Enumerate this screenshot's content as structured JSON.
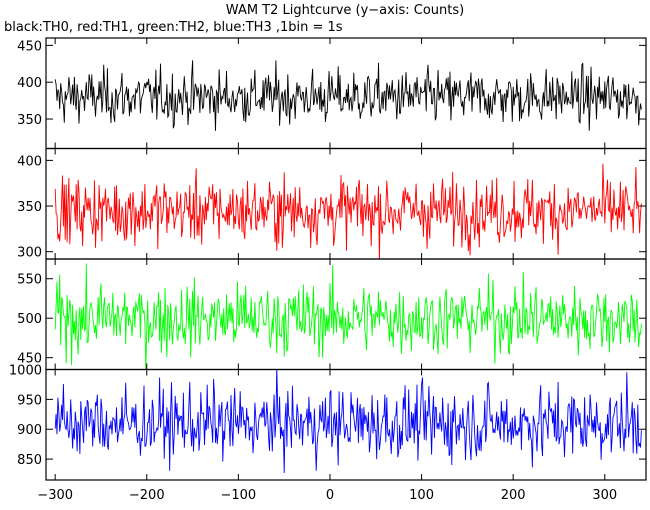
{
  "title": "WAM T2 Lightcurve (y−axis: Counts)",
  "subtitle": "black:TH0, red:TH1, green:TH2, blue:TH3 ,1bin = 1s",
  "chart_data": {
    "type": "line",
    "x_range": [
      -310,
      345
    ],
    "x_ticks": [
      -300,
      -200,
      -100,
      0,
      100,
      200,
      300
    ],
    "bin_seconds": 1,
    "grid": false,
    "panels": [
      {
        "series": "TH0",
        "color": "#000000",
        "ylim": [
          310,
          460
        ],
        "y_ticks": [
          350,
          400,
          450
        ],
        "mean": 380,
        "spread": 18,
        "x_start": -300,
        "x_end": 340
      },
      {
        "series": "TH1",
        "color": "#ff0000",
        "ylim": [
          292,
          413
        ],
        "y_ticks": [
          300,
          350,
          400
        ],
        "mean": 345,
        "spread": 18,
        "x_start": -300,
        "x_end": 340
      },
      {
        "series": "TH2",
        "color": "#00ff00",
        "ylim": [
          435,
          575
        ],
        "y_ticks": [
          450,
          500,
          550
        ],
        "mean": 500,
        "spread": 22,
        "x_start": -300,
        "x_end": 340
      },
      {
        "series": "TH3",
        "color": "#0000ff",
        "ylim": [
          815,
          1000
        ],
        "y_ticks": [
          850,
          900,
          950,
          1000
        ],
        "mean": 910,
        "spread": 30,
        "x_start": -300,
        "x_end": 340
      }
    ]
  }
}
